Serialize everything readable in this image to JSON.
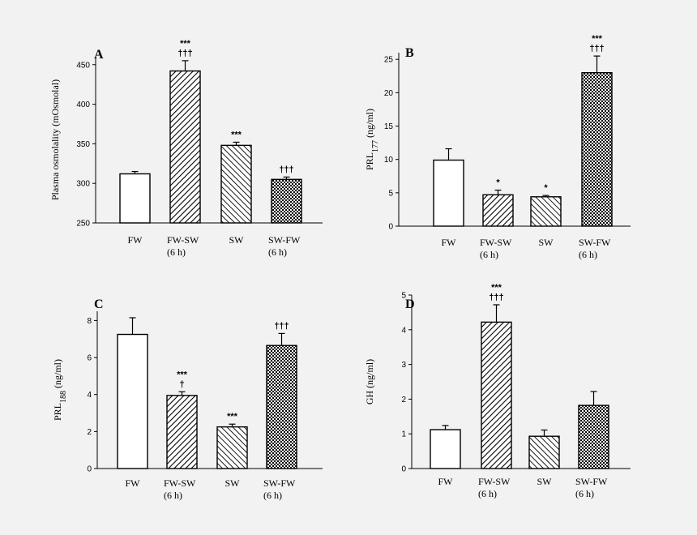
{
  "chart_data": [
    {
      "type": "bar",
      "panel": "A",
      "categories": [
        [
          "FW"
        ],
        [
          "FW-SW",
          "(6 h)"
        ],
        [
          "SW"
        ],
        [
          "SW-FW",
          "(6 h)"
        ]
      ],
      "ylabel": "Plasma osmolality (mOsmolal)",
      "ylabel_sub": "",
      "ylabel_suffix": "",
      "ylim": [
        250,
        460
      ],
      "yticks": [
        250,
        300,
        350,
        400,
        450
      ],
      "values": [
        312,
        442,
        348,
        305
      ],
      "errors": [
        3,
        13,
        4,
        3
      ],
      "significance": [
        [],
        [
          "***",
          "†††"
        ],
        [
          "***"
        ],
        [
          "†††"
        ]
      ],
      "patterns": [
        "none",
        "diag-fine",
        "diag-wide",
        "dots"
      ]
    },
    {
      "type": "bar",
      "panel": "B",
      "categories": [
        [
          "FW"
        ],
        [
          "FW-SW",
          "(6 h)"
        ],
        [
          "SW"
        ],
        [
          "SW-FW",
          "(6 h)"
        ]
      ],
      "ylabel": "PRL",
      "ylabel_sub": "177",
      "ylabel_suffix": " (ng/ml)",
      "ylim": [
        0,
        26
      ],
      "yticks": [
        0,
        5,
        10,
        15,
        20,
        25
      ],
      "values": [
        9.9,
        4.7,
        4.4,
        23.0
      ],
      "errors": [
        1.7,
        0.7,
        0.2,
        2.5
      ],
      "significance": [
        [],
        [
          "*"
        ],
        [
          "*"
        ],
        [
          "***",
          "†††"
        ]
      ],
      "patterns": [
        "none",
        "diag-fine",
        "diag-wide",
        "dots"
      ]
    },
    {
      "type": "bar",
      "panel": "C",
      "categories": [
        [
          "FW"
        ],
        [
          "FW-SW",
          "(6 h)"
        ],
        [
          "SW"
        ],
        [
          "SW-FW",
          "(6 h)"
        ]
      ],
      "ylabel": "PRL",
      "ylabel_sub": "188",
      "ylabel_suffix": " (ng/ml)",
      "ylim": [
        0,
        8.5
      ],
      "yticks": [
        0,
        2,
        4,
        6,
        8
      ],
      "values": [
        7.25,
        3.95,
        2.25,
        6.65
      ],
      "errors": [
        0.9,
        0.2,
        0.15,
        0.65
      ],
      "significance": [
        [],
        [
          "***",
          "†"
        ],
        [
          "***"
        ],
        [
          "†††"
        ]
      ],
      "patterns": [
        "none",
        "diag-fine",
        "diag-wide",
        "dots"
      ]
    },
    {
      "type": "bar",
      "panel": "D",
      "categories": [
        [
          "FW"
        ],
        [
          "FW-SW",
          "(6 h)"
        ],
        [
          "SW"
        ],
        [
          "SW-FW",
          "(6 h)"
        ]
      ],
      "ylabel": "GH (ng/ml)",
      "ylabel_sub": "",
      "ylabel_suffix": "",
      "ylim": [
        0,
        5
      ],
      "yticks": [
        0,
        1,
        2,
        3,
        4,
        5
      ],
      "values": [
        1.12,
        4.22,
        0.93,
        1.82
      ],
      "errors": [
        0.12,
        0.5,
        0.18,
        0.4
      ],
      "significance": [
        [],
        [
          "***",
          "†††"
        ],
        [],
        []
      ],
      "patterns": [
        "none",
        "diag-fine",
        "diag-wide",
        "dots"
      ]
    }
  ]
}
